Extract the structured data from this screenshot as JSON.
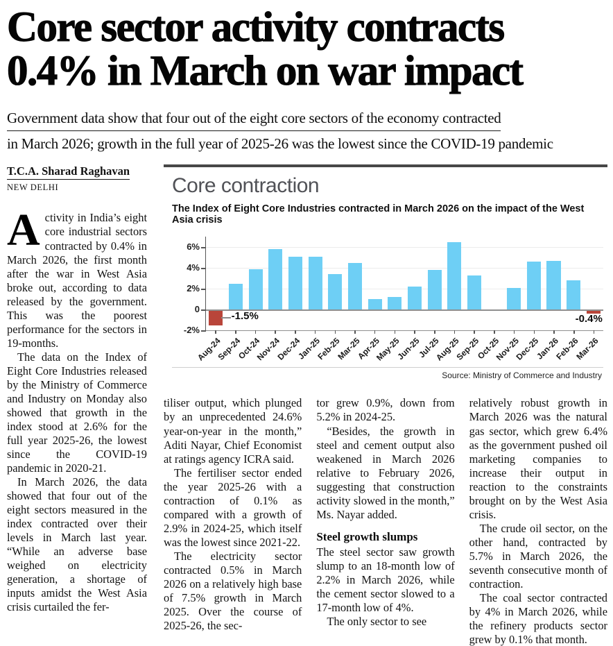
{
  "article": {
    "headline_line1": "Core sector activity contracts",
    "headline_line2": "0.4% in March on war impact",
    "standfirst_line1": "Government data show that four out of the eight core sectors of the economy contracted",
    "standfirst_line2": "in March 2026; growth in the full year of 2025-26 was the lowest since the COVID-19 pandemic",
    "byline": "T.C.A. Sharad Raghavan",
    "dateline": "NEW DELHI",
    "col1": {
      "dropcap": "A",
      "lead_rest": "ctivity in India’s eight core industrial sectors contracted by 0.4% in March 2026, the first month after the war in West Asia broke out, according to data released by the government. This was the poorest performance for the sectors in 19-months.",
      "paras": [
        {
          "indent": true,
          "text": "The data on the Index of Eight Core Industries released by the Ministry of Commerce and Industry on Monday also showed that growth in the index stood at 2.6% for the full year 2025-26, the lowest since the COVID-19 pandemic in 2020-21."
        },
        {
          "indent": true,
          "text": "In March 2026, the data showed that four out of the eight sectors measured in the index contracted over their levels in March last year. “While an adverse base weighed on electricity generation, a shortage of inputs amidst the West Asia crisis curtailed the fer-"
        }
      ]
    },
    "col2": {
      "paras": [
        {
          "indent": false,
          "text": "tiliser output, which plunged by an unprecedented 24.6% year-on-year in the month,” Aditi Nayar, Chief Economist at ratings agency ICRA said."
        },
        {
          "indent": true,
          "text": "The fertiliser sector ended the year 2025-26 with a contraction of 0.1% as compared with a growth of 2.9% in 2024-25, which itself was the lowest since 2021-22."
        },
        {
          "indent": true,
          "text": "The electricity sector contracted 0.5% in March 2026 on a relatively high base of 7.5% growth in March 2025. Over the course of 2025-26, the sec-"
        }
      ]
    },
    "col3": {
      "paras_before": [
        {
          "indent": false,
          "text": "tor grew 0.9%, down from 5.2% in 2024-25."
        },
        {
          "indent": true,
          "text": "“Besides, the growth in steel and cement output also weakened in March 2026 relative to February 2026, suggesting that construction activity slowed in the month,” Ms. Nayar added."
        }
      ],
      "subhead": "Steel growth slumps",
      "paras_after": [
        {
          "indent": false,
          "text": "The steel sector saw growth slump to an 18-month low of 2.2% in March 2026, while the cement sector slowed to a 17-month low of 4%."
        },
        {
          "indent": true,
          "text": "The only sector to see"
        }
      ]
    },
    "col4": {
      "paras": [
        {
          "indent": false,
          "text": "relatively robust growth in March 2026 was the natural gas sector, which grew 6.4% as the government pushed oil marketing companies to increase their output in reaction to the constraints brought on by the West Asia crisis."
        },
        {
          "indent": true,
          "text": "The crude oil sector, on the other hand, contracted by 5.7% in March 2026, the seventh consecutive month of contraction."
        },
        {
          "indent": true,
          "text": "The coal sector contracted by 4% in March 2026, while the refinery products sector grew by 0.1% that month."
        }
      ]
    }
  },
  "chart": {
    "title": "Core contraction",
    "subtitle": "The Index of Eight Core Industries contracted in March 2026 on the impact of the West Asia crisis",
    "source": "Source: Ministry of Commerce and Industry",
    "annotation_first": "-1.5%",
    "annotation_last": "-0.4%"
  },
  "chart_data": {
    "type": "bar",
    "title": "Core contraction",
    "subtitle": "The Index of Eight Core Industries contracted in March 2026 on the impact of the West Asia crisis",
    "source": "Source: Ministry of Commerce and Industry",
    "categories": [
      "Aug-24",
      "Sep-24",
      "Oct-24",
      "Nov-24",
      "Dec-24",
      "Jan-25",
      "Feb-25",
      "Mar-25",
      "Apr-25",
      "May-25",
      "Jun-25",
      "Jul-25",
      "Aug-25",
      "Sep-25",
      "Oct-25",
      "Nov-25",
      "Dec-25",
      "Jan-26",
      "Feb-26",
      "Mar-26"
    ],
    "values": [
      -1.5,
      2.5,
      3.9,
      5.8,
      5.1,
      5.1,
      3.4,
      4.5,
      1.0,
      1.2,
      2.2,
      3.8,
      6.5,
      3.3,
      -0.1,
      2.1,
      4.6,
      4.7,
      2.8,
      -0.4
    ],
    "xlabel": "",
    "ylabel": "",
    "ylim": [
      -2,
      7
    ],
    "yticks": [
      "6%",
      "4%",
      "2%",
      "0",
      "-2%"
    ],
    "ytick_values": [
      6,
      4,
      2,
      0,
      -2
    ],
    "grid": "horizontal",
    "legend": "none",
    "bar_color_positive": "#6ecff5",
    "bar_color_negative": "#b9453a",
    "annotations": [
      {
        "category": "Aug-24",
        "label": "-1.5%"
      },
      {
        "category": "Mar-26",
        "label": "-0.4%"
      }
    ]
  }
}
